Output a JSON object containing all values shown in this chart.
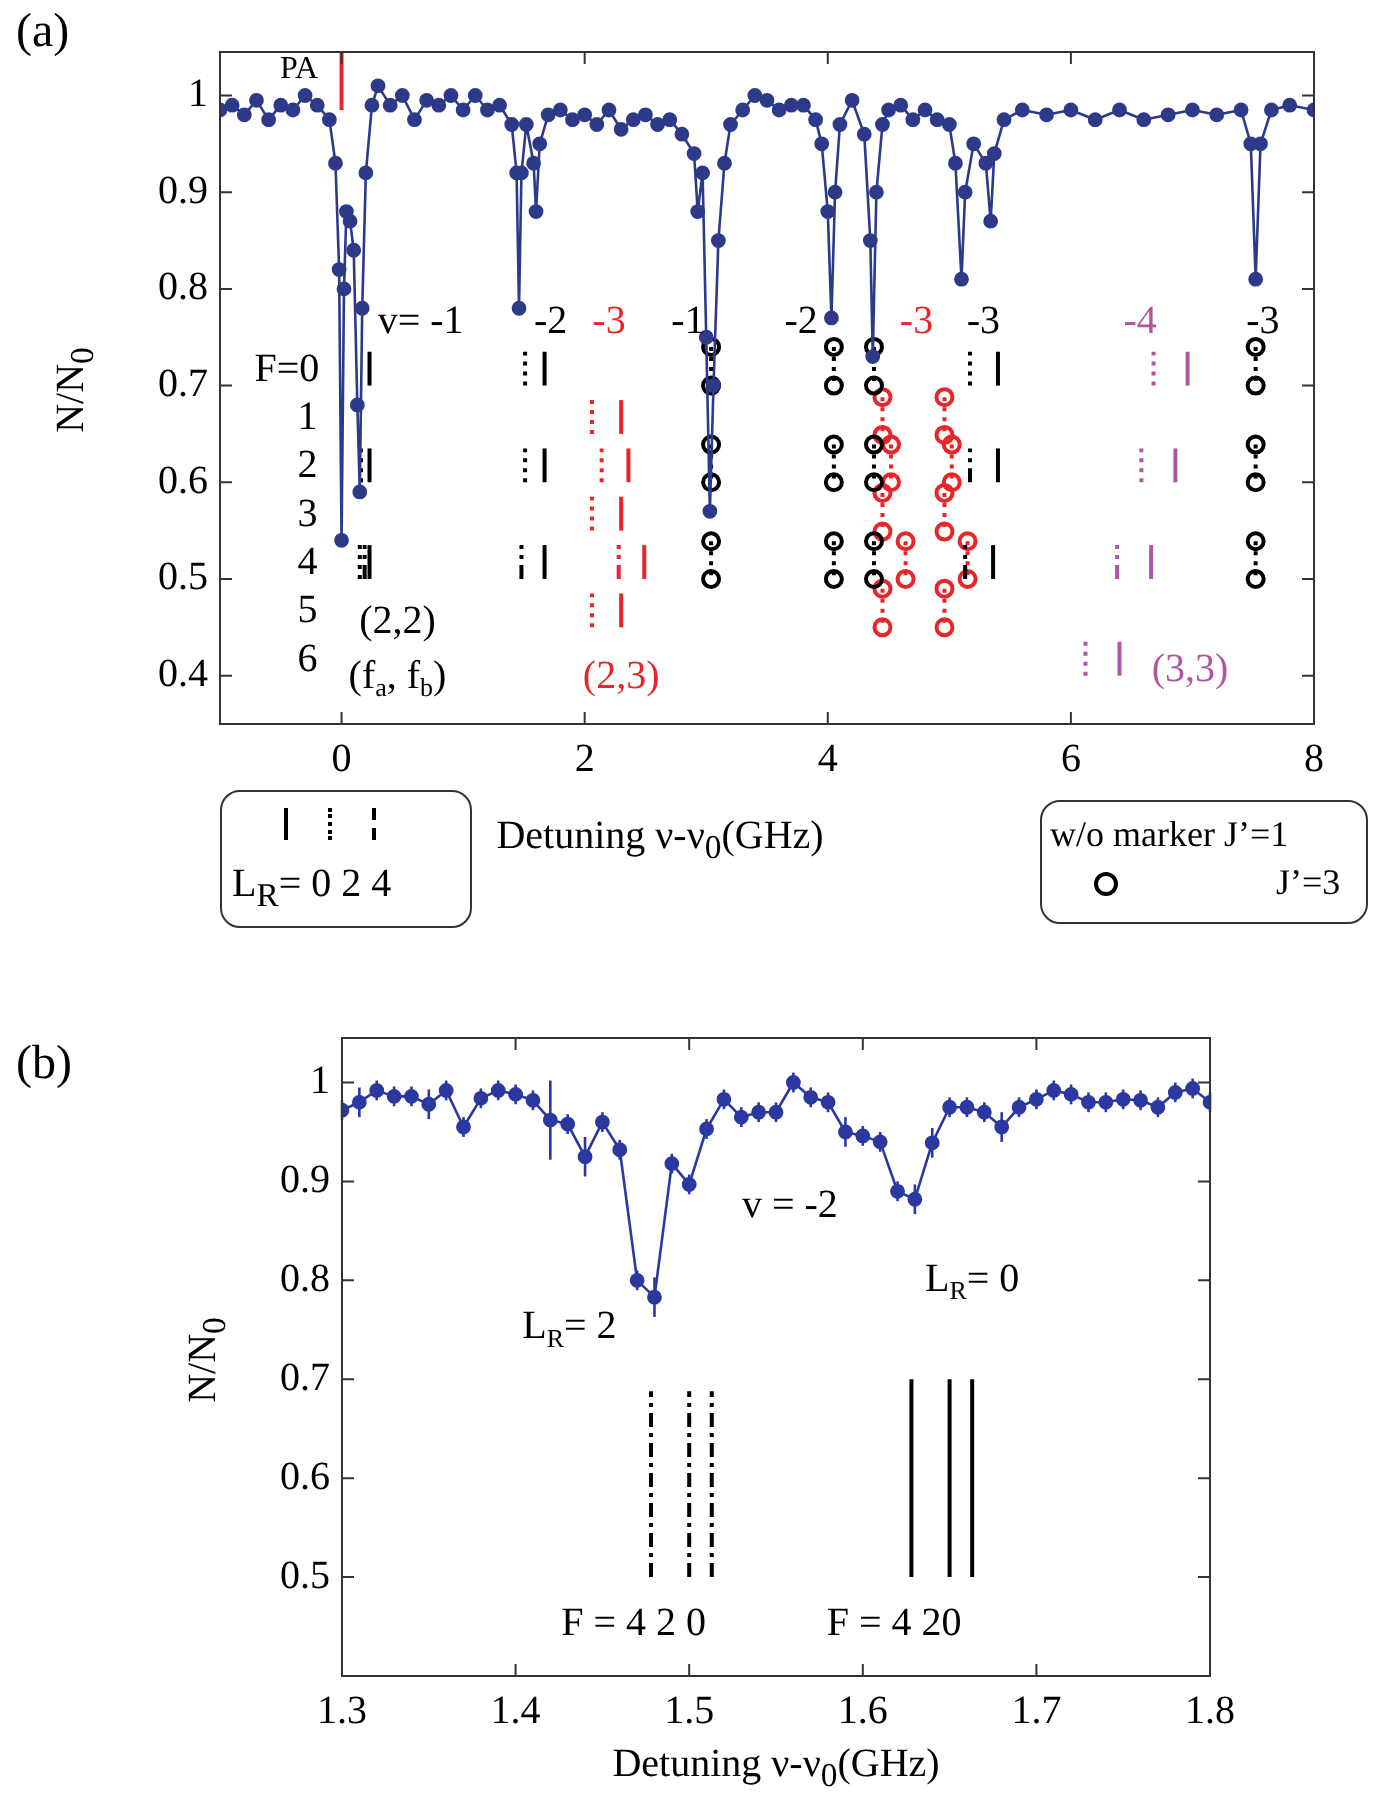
{
  "chart_data": [
    {
      "type": "line",
      "xlabel": "Detuning ν-ν$_{0}$(GHz)",
      "ylabel": "N/N$_{0}$",
      "xlim": [
        -1,
        8
      ],
      "ylim": [
        0.35,
        1.045
      ],
      "xticks": [
        0,
        2,
        4,
        6,
        8
      ],
      "yticks": [
        0.4,
        0.5,
        0.6,
        0.7,
        0.8,
        0.9,
        1
      ],
      "grid": false,
      "legend": false,
      "series": [
        {
          "type": "line",
          "color": "#2d3a8a",
          "marker": "circle",
          "line_style": "solid",
          "x": [
            -1.0,
            -0.9,
            -0.8,
            -0.7,
            -0.6,
            -0.5,
            -0.4,
            -0.3,
            -0.2,
            -0.1,
            -0.05,
            -0.02,
            0.0,
            0.02,
            0.04,
            0.07,
            0.1,
            0.13,
            0.15,
            0.17,
            0.2,
            0.25,
            0.3,
            0.4,
            0.5,
            0.6,
            0.7,
            0.8,
            0.9,
            1.0,
            1.1,
            1.2,
            1.3,
            1.4,
            1.44,
            1.46,
            1.48,
            1.52,
            1.58,
            1.6,
            1.63,
            1.7,
            1.8,
            1.9,
            2.0,
            2.1,
            2.2,
            2.3,
            2.4,
            2.5,
            2.6,
            2.7,
            2.8,
            2.9,
            2.93,
            2.97,
            3.0,
            3.03,
            3.06,
            3.1,
            3.15,
            3.2,
            3.3,
            3.4,
            3.5,
            3.6,
            3.7,
            3.8,
            3.9,
            3.95,
            4.0,
            4.03,
            4.06,
            4.1,
            4.2,
            4.3,
            4.35,
            4.37,
            4.4,
            4.45,
            4.5,
            4.6,
            4.7,
            4.8,
            4.9,
            5.0,
            5.05,
            5.1,
            5.13,
            5.2,
            5.3,
            5.34,
            5.37,
            5.45,
            5.6,
            5.8,
            6.0,
            6.2,
            6.4,
            6.6,
            6.8,
            7.0,
            7.2,
            7.4,
            7.48,
            7.52,
            7.56,
            7.65,
            7.8,
            8.0
          ],
          "values": [
            0.985,
            0.99,
            0.98,
            0.995,
            0.975,
            0.99,
            0.985,
            1.0,
            0.99,
            0.975,
            0.93,
            0.82,
            0.54,
            0.8,
            0.88,
            0.87,
            0.84,
            0.68,
            0.59,
            0.78,
            0.92,
            0.99,
            1.01,
            0.99,
            1.0,
            0.975,
            0.995,
            0.99,
            1.0,
            0.985,
            1.0,
            0.985,
            0.99,
            0.97,
            0.92,
            0.78,
            0.92,
            0.97,
            0.93,
            0.88,
            0.95,
            0.98,
            0.985,
            0.975,
            0.98,
            0.97,
            0.985,
            0.965,
            0.975,
            0.98,
            0.97,
            0.975,
            0.96,
            0.94,
            0.88,
            0.92,
            0.75,
            0.57,
            0.7,
            0.85,
            0.93,
            0.97,
            0.985,
            1.0,
            0.995,
            0.985,
            0.99,
            0.99,
            0.975,
            0.95,
            0.88,
            0.77,
            0.9,
            0.97,
            0.995,
            0.96,
            0.85,
            0.73,
            0.9,
            0.97,
            0.985,
            0.99,
            0.975,
            0.985,
            0.975,
            0.97,
            0.93,
            0.81,
            0.9,
            0.95,
            0.93,
            0.87,
            0.94,
            0.975,
            0.985,
            0.98,
            0.985,
            0.975,
            0.985,
            0.975,
            0.98,
            0.985,
            0.98,
            0.985,
            0.95,
            0.81,
            0.95,
            0.985,
            0.99,
            0.985
          ]
        },
        {
          "type": "line",
          "color": "#e8262a",
          "marker": "none",
          "line_style": "solid",
          "x": [
            0,
            0
          ],
          "values": [
            0.985,
            1.045
          ]
        },
        {
          "type": "line",
          "color": "#000000",
          "marker": "none",
          "line_style": "solid",
          "x": [
            0.23,
            0.23
          ],
          "values": [
            0.7,
            0.735
          ]
        },
        {
          "type": "line",
          "color": "#000000",
          "marker": "none",
          "line_style": "solid",
          "x": [
            0.23,
            0.23
          ],
          "values": [
            0.6,
            0.635
          ]
        },
        {
          "type": "line",
          "color": "#000000",
          "marker": "none",
          "line_style": "solid",
          "x": [
            0.23,
            0.23
          ],
          "values": [
            0.5,
            0.535
          ]
        },
        {
          "type": "line",
          "color": "#000000",
          "marker": "none",
          "line_style": "solid",
          "x": [
            1.67,
            1.67
          ],
          "values": [
            0.7,
            0.735
          ]
        },
        {
          "type": "line",
          "color": "#000000",
          "marker": "none",
          "line_style": "solid",
          "x": [
            1.67,
            1.67
          ],
          "values": [
            0.6,
            0.635
          ]
        },
        {
          "type": "line",
          "color": "#000000",
          "marker": "none",
          "line_style": "solid",
          "x": [
            1.67,
            1.67
          ],
          "values": [
            0.5,
            0.535
          ]
        },
        {
          "type": "line",
          "color": "#000000",
          "marker": "none",
          "line_style": "solid",
          "x": [
            5.4,
            5.4
          ],
          "values": [
            0.7,
            0.735
          ]
        },
        {
          "type": "line",
          "color": "#000000",
          "marker": "none",
          "line_style": "solid",
          "x": [
            5.4,
            5.4
          ],
          "values": [
            0.6,
            0.635
          ]
        },
        {
          "type": "line",
          "color": "#000000",
          "marker": "none",
          "line_style": "solid",
          "x": [
            5.36,
            5.36
          ],
          "values": [
            0.5,
            0.535
          ]
        },
        {
          "type": "line",
          "color": "#000000",
          "marker": "none",
          "line_style": "dotted",
          "x": [
            0.16,
            0.16
          ],
          "values": [
            0.6,
            0.635
          ]
        },
        {
          "type": "line",
          "color": "#000000",
          "marker": "none",
          "line_style": "dotted",
          "x": [
            0.15,
            0.15
          ],
          "values": [
            0.5,
            0.535
          ]
        },
        {
          "type": "line",
          "color": "#000000",
          "marker": "none",
          "line_style": "dotted",
          "x": [
            1.51,
            1.51
          ],
          "values": [
            0.7,
            0.735
          ]
        },
        {
          "type": "line",
          "color": "#000000",
          "marker": "none",
          "line_style": "dotted",
          "x": [
            1.51,
            1.51
          ],
          "values": [
            0.6,
            0.635
          ]
        },
        {
          "type": "line",
          "color": "#000000",
          "marker": "none",
          "line_style": "dotted",
          "x": [
            5.17,
            5.17
          ],
          "values": [
            0.7,
            0.735
          ]
        },
        {
          "type": "line",
          "color": "#000000",
          "marker": "none",
          "line_style": "dashed",
          "x": [
            0.19,
            0.19
          ],
          "values": [
            0.5,
            0.535
          ]
        },
        {
          "type": "line",
          "color": "#000000",
          "marker": "none",
          "line_style": "dashed",
          "x": [
            1.48,
            1.48
          ],
          "values": [
            0.5,
            0.535
          ]
        },
        {
          "type": "line",
          "color": "#000000",
          "marker": "none",
          "line_style": "dashed",
          "x": [
            5.17,
            5.17
          ],
          "values": [
            0.6,
            0.635
          ]
        },
        {
          "type": "line",
          "color": "#000000",
          "marker": "none",
          "line_style": "dashed",
          "x": [
            5.13,
            5.13
          ],
          "values": [
            0.5,
            0.535
          ]
        },
        {
          "type": "line",
          "color": "#e8262a",
          "marker": "none",
          "line_style": "solid",
          "x": [
            2.3,
            2.3
          ],
          "values": [
            0.65,
            0.685
          ]
        },
        {
          "type": "line",
          "color": "#e8262a",
          "marker": "none",
          "line_style": "solid",
          "x": [
            2.36,
            2.36
          ],
          "values": [
            0.6,
            0.635
          ]
        },
        {
          "type": "line",
          "color": "#e8262a",
          "marker": "none",
          "line_style": "solid",
          "x": [
            2.3,
            2.3
          ],
          "values": [
            0.55,
            0.585
          ]
        },
        {
          "type": "line",
          "color": "#e8262a",
          "marker": "none",
          "line_style": "solid",
          "x": [
            2.49,
            2.49
          ],
          "values": [
            0.5,
            0.535
          ]
        },
        {
          "type": "line",
          "color": "#e8262a",
          "marker": "none",
          "line_style": "solid",
          "x": [
            2.3,
            2.3
          ],
          "values": [
            0.45,
            0.485
          ]
        },
        {
          "type": "line",
          "color": "#e8262a",
          "marker": "none",
          "line_style": "dotted",
          "x": [
            2.06,
            2.06
          ],
          "values": [
            0.65,
            0.685
          ]
        },
        {
          "type": "line",
          "color": "#e8262a",
          "marker": "none",
          "line_style": "dotted",
          "x": [
            2.14,
            2.14
          ],
          "values": [
            0.6,
            0.635
          ]
        },
        {
          "type": "line",
          "color": "#e8262a",
          "marker": "none",
          "line_style": "dotted",
          "x": [
            2.06,
            2.06
          ],
          "values": [
            0.55,
            0.585
          ]
        },
        {
          "type": "line",
          "color": "#e8262a",
          "marker": "none",
          "line_style": "dotted",
          "x": [
            2.06,
            2.06
          ],
          "values": [
            0.45,
            0.485
          ]
        },
        {
          "type": "line",
          "color": "#e8262a",
          "marker": "none",
          "line_style": "dashed",
          "x": [
            2.28,
            2.28
          ],
          "values": [
            0.5,
            0.535
          ]
        },
        {
          "type": "line",
          "color": "#b0559f",
          "marker": "none",
          "line_style": "solid",
          "x": [
            6.96,
            6.96
          ],
          "values": [
            0.7,
            0.735
          ]
        },
        {
          "type": "line",
          "color": "#b0559f",
          "marker": "none",
          "line_style": "solid",
          "x": [
            6.86,
            6.86
          ],
          "values": [
            0.6,
            0.635
          ]
        },
        {
          "type": "line",
          "color": "#b0559f",
          "marker": "none",
          "line_style": "solid",
          "x": [
            6.66,
            6.66
          ],
          "values": [
            0.5,
            0.535
          ]
        },
        {
          "type": "line",
          "color": "#b0559f",
          "marker": "none",
          "line_style": "solid",
          "x": [
            6.4,
            6.4
          ],
          "values": [
            0.4,
            0.435
          ]
        },
        {
          "type": "line",
          "color": "#b0559f",
          "marker": "none",
          "line_style": "dotted",
          "x": [
            6.68,
            6.68
          ],
          "values": [
            0.7,
            0.735
          ]
        },
        {
          "type": "line",
          "color": "#b0559f",
          "marker": "none",
          "line_style": "dotted",
          "x": [
            6.58,
            6.58
          ],
          "values": [
            0.6,
            0.635
          ]
        },
        {
          "type": "line",
          "color": "#b0559f",
          "marker": "none",
          "line_style": "dotted",
          "x": [
            6.12,
            6.12
          ],
          "values": [
            0.4,
            0.435
          ]
        },
        {
          "type": "line",
          "color": "#b0559f",
          "marker": "none",
          "line_style": "dashed",
          "x": [
            6.38,
            6.38
          ],
          "values": [
            0.5,
            0.535
          ]
        },
        {
          "type": "line",
          "color": "#000000",
          "marker": "circle",
          "line_style": "dotted",
          "x": [
            3.04,
            3.04
          ],
          "values": [
            0.74,
            0.7
          ]
        },
        {
          "type": "line",
          "color": "#000000",
          "marker": "circle",
          "line_style": "dotted",
          "x": [
            3.04,
            3.04
          ],
          "values": [
            0.639,
            0.6
          ]
        },
        {
          "type": "line",
          "color": "#000000",
          "marker": "circle",
          "line_style": "dotted",
          "x": [
            3.04,
            3.04
          ],
          "values": [
            0.539,
            0.5
          ]
        },
        {
          "type": "line",
          "color": "#000000",
          "marker": "circle",
          "line_style": "dotted",
          "x": [
            4.05,
            4.05
          ],
          "values": [
            0.74,
            0.7
          ]
        },
        {
          "type": "line",
          "color": "#000000",
          "marker": "circle",
          "line_style": "dotted",
          "x": [
            4.05,
            4.05
          ],
          "values": [
            0.639,
            0.6
          ]
        },
        {
          "type": "line",
          "color": "#000000",
          "marker": "circle",
          "line_style": "dotted",
          "x": [
            4.05,
            4.05
          ],
          "values": [
            0.539,
            0.5
          ]
        },
        {
          "type": "line",
          "color": "#000000",
          "marker": "circle",
          "line_style": "dotted",
          "x": [
            4.38,
            4.38
          ],
          "values": [
            0.74,
            0.7
          ]
        },
        {
          "type": "line",
          "color": "#000000",
          "marker": "circle",
          "line_style": "dotted",
          "x": [
            4.38,
            4.38
          ],
          "values": [
            0.639,
            0.6
          ]
        },
        {
          "type": "line",
          "color": "#000000",
          "marker": "circle",
          "line_style": "dotted",
          "x": [
            4.38,
            4.38
          ],
          "values": [
            0.539,
            0.5
          ]
        },
        {
          "type": "line",
          "color": "#000000",
          "marker": "circle",
          "line_style": "dotted",
          "x": [
            7.52,
            7.52
          ],
          "values": [
            0.74,
            0.7
          ]
        },
        {
          "type": "line",
          "color": "#000000",
          "marker": "circle",
          "line_style": "dotted",
          "x": [
            7.52,
            7.52
          ],
          "values": [
            0.639,
            0.6
          ]
        },
        {
          "type": "line",
          "color": "#000000",
          "marker": "circle",
          "line_style": "dotted",
          "x": [
            7.52,
            7.52
          ],
          "values": [
            0.539,
            0.5
          ]
        },
        {
          "type": "line",
          "color": "#e8262a",
          "marker": "circle",
          "line_style": "dotted",
          "x": [
            4.45,
            4.45
          ],
          "values": [
            0.688,
            0.649
          ]
        },
        {
          "type": "line",
          "color": "#e8262a",
          "marker": "circle",
          "line_style": "dotted",
          "x": [
            4.45,
            4.45
          ],
          "values": [
            0.589,
            0.549
          ]
        },
        {
          "type": "line",
          "color": "#e8262a",
          "marker": "circle",
          "line_style": "dotted",
          "x": [
            4.45,
            4.45
          ],
          "values": [
            0.49,
            0.45
          ]
        },
        {
          "type": "line",
          "color": "#e8262a",
          "marker": "circle",
          "line_style": "dotted",
          "x": [
            4.52,
            4.52
          ],
          "values": [
            0.639,
            0.6
          ]
        },
        {
          "type": "line",
          "color": "#e8262a",
          "marker": "circle",
          "line_style": "dotted",
          "x": [
            4.64,
            4.64
          ],
          "values": [
            0.539,
            0.5
          ]
        },
        {
          "type": "line",
          "color": "#e8262a",
          "marker": "circle",
          "line_style": "dotted",
          "x": [
            4.96,
            4.96
          ],
          "values": [
            0.688,
            0.649
          ]
        },
        {
          "type": "line",
          "color": "#e8262a",
          "marker": "circle",
          "line_style": "dotted",
          "x": [
            4.96,
            4.96
          ],
          "values": [
            0.589,
            0.549
          ]
        },
        {
          "type": "line",
          "color": "#e8262a",
          "marker": "circle",
          "line_style": "dotted",
          "x": [
            4.96,
            4.96
          ],
          "values": [
            0.49,
            0.45
          ]
        },
        {
          "type": "line",
          "color": "#e8262a",
          "marker": "circle",
          "line_style": "dotted",
          "x": [
            5.02,
            5.02
          ],
          "values": [
            0.639,
            0.6
          ]
        },
        {
          "type": "line",
          "color": "#e8262a",
          "marker": "circle",
          "line_style": "dotted",
          "x": [
            5.15,
            5.15
          ],
          "values": [
            0.539,
            0.5
          ]
        }
      ],
      "annotations": [
        "(a)",
        "L$_{R}$= 0 2 4",
        "w/o marker J’=1",
        "J’=3",
        "PA",
        "v= -1",
        "-2",
        "-3",
        "-1",
        "-2",
        "-3",
        "-3",
        "-4",
        "-3",
        "F=0",
        "1",
        "2",
        "3",
        "4",
        "5",
        "6",
        "(2,2)",
        "(f$_{a}$, f$_{b}$)",
        "(2,3)",
        "(3,3)"
      ]
    },
    {
      "type": "line",
      "xlabel": "Detuning ν-ν$_{0}$(GHz)",
      "ylabel": "N/N$_{0}$",
      "xlim": [
        1.3,
        1.8
      ],
      "ylim": [
        0.4,
        1.045
      ],
      "xticks": [
        1.3,
        1.4,
        1.5,
        1.6,
        1.7,
        1.8
      ],
      "yticks": [
        0.5,
        0.6,
        0.7,
        0.8,
        0.9,
        1
      ],
      "grid": false,
      "legend": false,
      "series": [
        {
          "type": "line",
          "color": "#2b38a0",
          "marker": "circle",
          "line_style": "solid",
          "x": [
            1.3,
            1.31,
            1.32,
            1.33,
            1.34,
            1.35,
            1.36,
            1.37,
            1.38,
            1.39,
            1.4,
            1.41,
            1.42,
            1.43,
            1.44,
            1.45,
            1.46,
            1.47,
            1.48,
            1.49,
            1.5,
            1.51,
            1.52,
            1.53,
            1.54,
            1.55,
            1.56,
            1.57,
            1.58,
            1.59,
            1.6,
            1.61,
            1.62,
            1.63,
            1.64,
            1.65,
            1.66,
            1.67,
            1.68,
            1.69,
            1.7,
            1.71,
            1.72,
            1.73,
            1.74,
            1.75,
            1.76,
            1.77,
            1.78,
            1.79,
            1.8
          ],
          "values": [
            0.972,
            0.98,
            0.992,
            0.986,
            0.986,
            0.978,
            0.992,
            0.955,
            0.984,
            0.992,
            0.988,
            0.982,
            0.962,
            0.958,
            0.925,
            0.96,
            0.932,
            0.8,
            0.783,
            0.918,
            0.897,
            0.953,
            0.983,
            0.965,
            0.97,
            0.97,
            1.0,
            0.985,
            0.98,
            0.95,
            0.946,
            0.94,
            0.89,
            0.882,
            0.939,
            0.975,
            0.975,
            0.97,
            0.955,
            0.975,
            0.983,
            0.992,
            0.988,
            0.98,
            0.98,
            0.983,
            0.982,
            0.975,
            0.99,
            0.994,
            0.98
          ],
          "errors": [
            0.01,
            0.015,
            0.01,
            0.01,
            0.01,
            0.015,
            0.01,
            0.01,
            0.01,
            0.01,
            0.01,
            0.01,
            0.04,
            0.01,
            0.02,
            0.01,
            0.01,
            0.01,
            0.02,
            0.01,
            0.01,
            0.01,
            0.01,
            0.01,
            0.01,
            0.01,
            0.01,
            0.01,
            0.01,
            0.015,
            0.01,
            0.01,
            0.01,
            0.015,
            0.015,
            0.01,
            0.01,
            0.01,
            0.015,
            0.01,
            0.01,
            0.01,
            0.01,
            0.01,
            0.01,
            0.01,
            0.01,
            0.01,
            0.01,
            0.01,
            0.01
          ]
        },
        {
          "type": "line",
          "color": "#000000",
          "marker": "none",
          "line_style": "dashed",
          "x": [
            1.478,
            1.478
          ],
          "values": [
            0.5,
            0.688
          ]
        },
        {
          "type": "line",
          "color": "#000000",
          "marker": "none",
          "line_style": "dashed",
          "x": [
            1.5,
            1.5
          ],
          "values": [
            0.5,
            0.688
          ]
        },
        {
          "type": "line",
          "color": "#000000",
          "marker": "none",
          "line_style": "dashed",
          "x": [
            1.513,
            1.513
          ],
          "values": [
            0.5,
            0.688
          ]
        },
        {
          "type": "line",
          "color": "#000000",
          "marker": "none",
          "line_style": "solid",
          "x": [
            1.628,
            1.628
          ],
          "values": [
            0.5,
            0.7
          ]
        },
        {
          "type": "line",
          "color": "#000000",
          "marker": "none",
          "line_style": "solid",
          "x": [
            1.65,
            1.65
          ],
          "values": [
            0.5,
            0.7
          ]
        },
        {
          "type": "line",
          "color": "#000000",
          "marker": "none",
          "line_style": "solid",
          "x": [
            1.663,
            1.663
          ],
          "values": [
            0.5,
            0.7
          ]
        }
      ],
      "annotations": [
        "(b)",
        "v = -2",
        "L$_{R}$= 2",
        "L$_{R}$= 0",
        "F = 4 2 0",
        "F = 4 20"
      ]
    }
  ]
}
